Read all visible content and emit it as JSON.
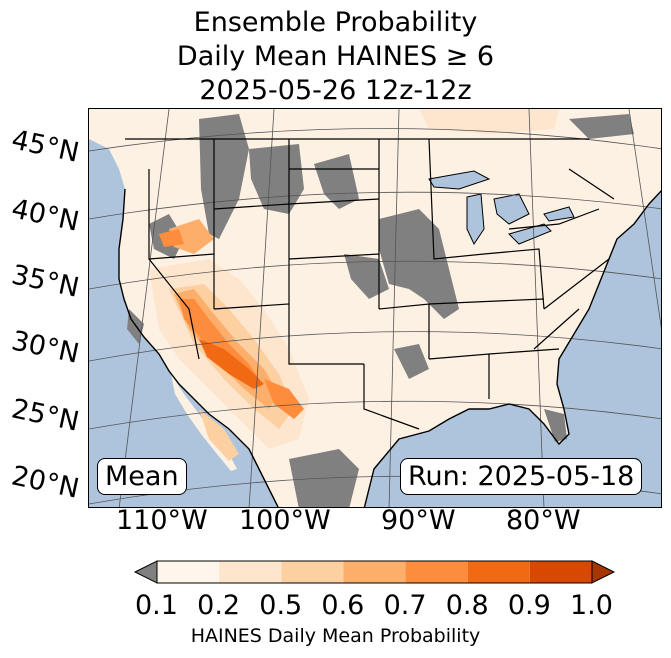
{
  "title": {
    "line1": "Ensemble Probability",
    "line2": "Daily Mean HAINES ≥ 6",
    "line3": "2025-05-26 12z-12z"
  },
  "map": {
    "projection": "Lambert conformal (CONUS)",
    "lat_labels": [
      "45°N",
      "40°N",
      "35°N",
      "30°N",
      "25°N",
      "20°N"
    ],
    "lon_labels": [
      "110°W",
      "100°W",
      "90°W",
      "80°W"
    ],
    "ocean_color": "#aec4dc",
    "land_color": "#fdf1e3",
    "missing_color": "#808080",
    "border_color": "#000000"
  },
  "annotations": {
    "stat": "Mean",
    "run": "Run: 2025-05-18"
  },
  "colorbar": {
    "label": "HAINES Daily Mean Probability",
    "ticks": [
      "0.1",
      "0.2",
      "0.5",
      "0.6",
      "0.7",
      "0.8",
      "0.9",
      "1.0"
    ],
    "under_color": "#808080",
    "colors": [
      "#fff5eb",
      "#fee6ce",
      "#fdd0a2",
      "#fdae6b",
      "#fd8d3c",
      "#f16913",
      "#d94801"
    ],
    "over_color": "#a63603"
  }
}
